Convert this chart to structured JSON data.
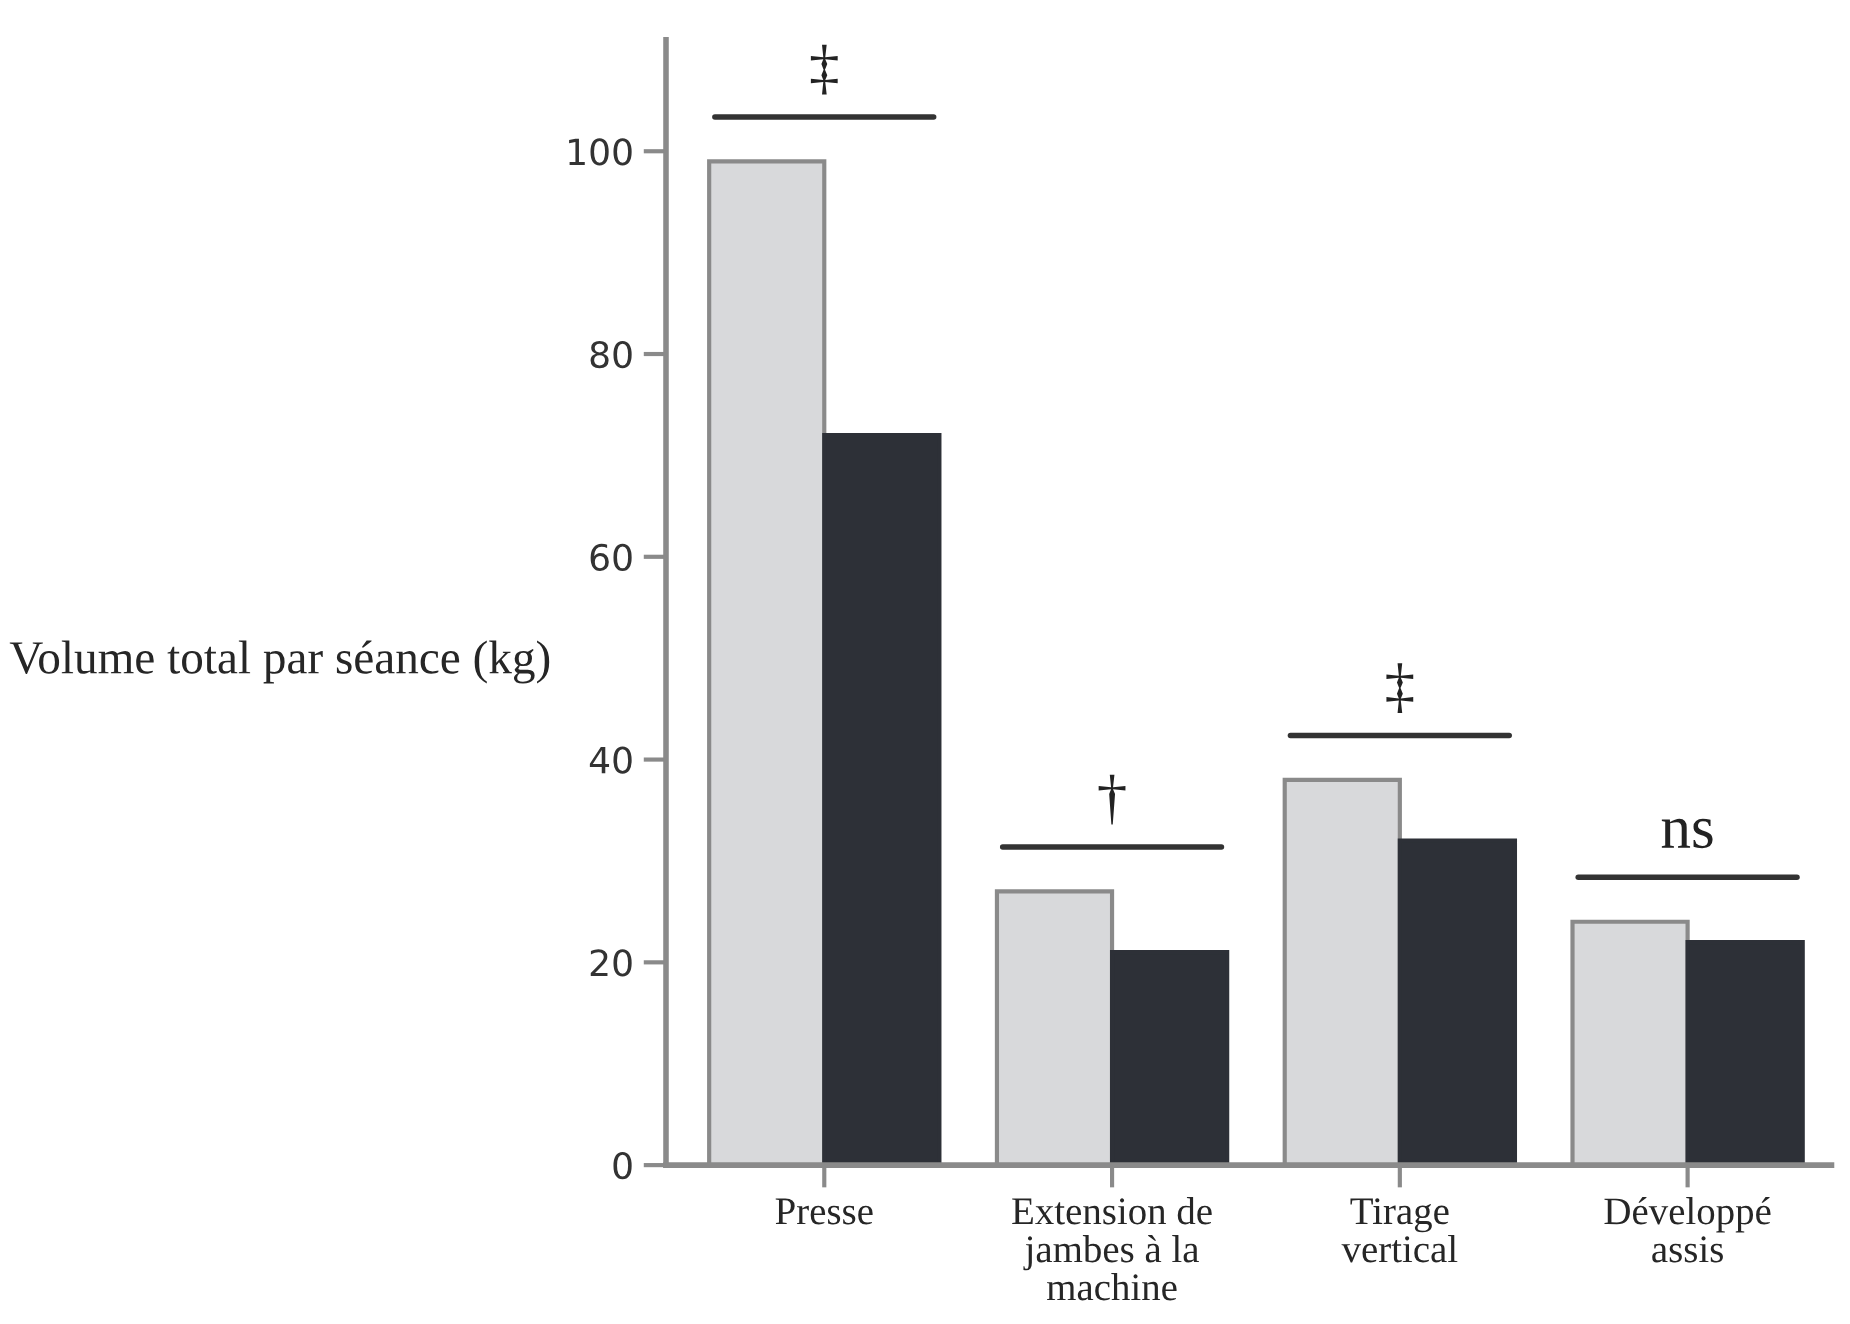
{
  "chart_data": {
    "type": "bar",
    "ylabel": "Volume total par séance (kg)",
    "categories": [
      "Presse",
      "Extension de\njambes à la\nmachine",
      "Tirage\nvertical",
      "Développé\nassis"
    ],
    "series": [
      {
        "color": "#d8d9db",
        "values": [
          99,
          27,
          38,
          24
        ]
      },
      {
        "color": "#2d3037",
        "values": [
          72,
          21,
          32,
          22
        ]
      }
    ],
    "ylim": [
      0,
      111
    ],
    "yticks": [
      0,
      20,
      40,
      60,
      80,
      100
    ],
    "grid": false,
    "legend": false,
    "annotations": [
      "‡",
      "†",
      "‡",
      "ns"
    ]
  }
}
